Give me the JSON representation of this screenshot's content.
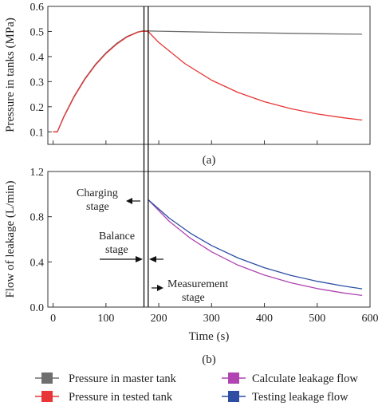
{
  "chart_data": [
    {
      "panel_label": "(a)",
      "type": "line",
      "ylabel": "Pressure in tanks (MPa)",
      "xlim": [
        -10,
        600
      ],
      "ylim": [
        0.05,
        0.6
      ],
      "yticks": [
        0.1,
        0.2,
        0.3,
        0.4,
        0.5,
        0.6
      ],
      "grid": false,
      "series": [
        {
          "name": "Pressure in master tank",
          "color": "#6e6e6e",
          "x": [
            0,
            8,
            20,
            40,
            60,
            80,
            100,
            120,
            140,
            160,
            170,
            180,
            200,
            300,
            400,
            500,
            585
          ],
          "y": [
            0.1,
            0.1,
            0.16,
            0.243,
            0.312,
            0.369,
            0.415,
            0.452,
            0.48,
            0.498,
            0.502,
            0.502,
            0.501,
            0.497,
            0.494,
            0.491,
            0.489
          ]
        },
        {
          "name": "Pressure in tested tank",
          "color": "#e83535",
          "x": [
            0,
            8,
            20,
            40,
            60,
            80,
            100,
            120,
            140,
            160,
            170,
            180,
            200,
            250,
            300,
            350,
            400,
            450,
            500,
            550,
            585
          ],
          "y": [
            0.1,
            0.1,
            0.158,
            0.24,
            0.309,
            0.366,
            0.412,
            0.449,
            0.478,
            0.497,
            0.501,
            0.5,
            0.456,
            0.371,
            0.306,
            0.257,
            0.22,
            0.192,
            0.171,
            0.156,
            0.147
          ]
        }
      ]
    },
    {
      "panel_label": "(b)",
      "type": "line",
      "xlabel": "Time (s)",
      "ylabel": "Flow of leakage (L/min)",
      "xlim": [
        -10,
        600
      ],
      "ylim": [
        0.0,
        1.2
      ],
      "xticks": [
        0,
        100,
        200,
        300,
        400,
        500,
        600
      ],
      "yticks": [
        0.0,
        0.4,
        0.8,
        1.2
      ],
      "grid": false,
      "series": [
        {
          "name": "Calculate leakage flow",
          "color": "#b044b0",
          "x": [
            180,
            220,
            260,
            300,
            350,
            400,
            450,
            500,
            550,
            585
          ],
          "y": [
            0.95,
            0.759,
            0.609,
            0.489,
            0.371,
            0.283,
            0.215,
            0.164,
            0.125,
            0.103
          ]
        },
        {
          "name": "Testing leakage flow",
          "color": "#2d4ea3",
          "x": [
            180,
            220,
            260,
            300,
            350,
            400,
            450,
            500,
            550,
            585
          ],
          "y": [
            0.95,
            0.787,
            0.654,
            0.545,
            0.435,
            0.349,
            0.281,
            0.228,
            0.186,
            0.162
          ]
        }
      ],
      "annotations": [
        {
          "text": [
            "Charging",
            "stage"
          ]
        },
        {
          "text": [
            "Balance",
            "stage"
          ]
        },
        {
          "text": [
            "Measurement",
            "stage"
          ]
        }
      ],
      "stage_boundaries_x": [
        172,
        180
      ]
    }
  ],
  "legend": {
    "placement": "bottom",
    "entries": [
      {
        "label": "Pressure in master tank",
        "color": "#6e6e6e"
      },
      {
        "label": "Calculate leakage flow",
        "color": "#b044b0"
      },
      {
        "label": "Pressure in tested tank",
        "color": "#e83535"
      },
      {
        "label": "Testing leakage flow",
        "color": "#2d4ea3"
      }
    ]
  }
}
